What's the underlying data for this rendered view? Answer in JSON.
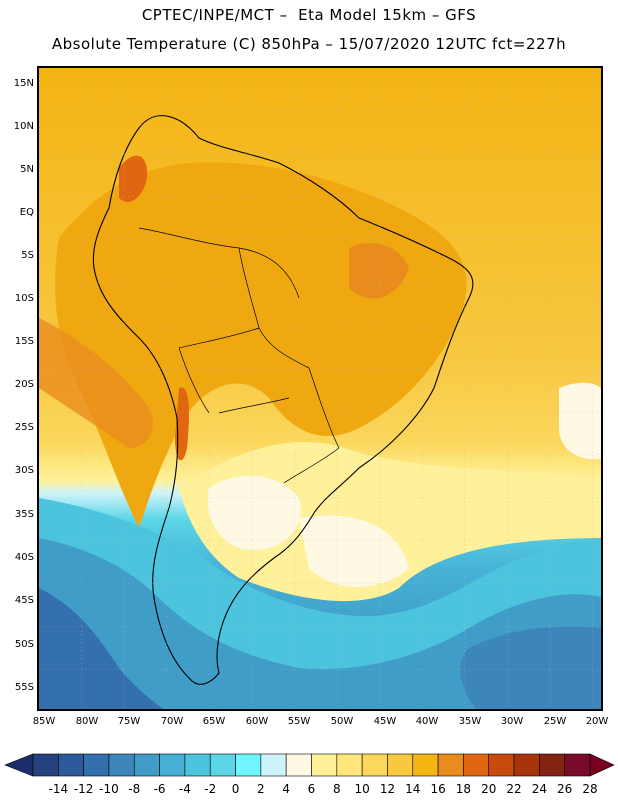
{
  "header": {
    "line1": "CPTEC/INPE/MCT –  Eta Model 15km – GFS",
    "line2": "Absolute Temperature (C) 850hPa – 15/07/2020 12UTC fct=227h"
  },
  "map": {
    "lat_labels": [
      "15N",
      "10N",
      "5N",
      "EQ",
      "5S",
      "10S",
      "15S",
      "20S",
      "25S",
      "30S",
      "35S",
      "40S",
      "45S",
      "50S",
      "55S"
    ],
    "lon_labels": [
      "85W",
      "80W",
      "75W",
      "70W",
      "65W",
      "60W",
      "55W",
      "50W",
      "45W",
      "40W",
      "35W",
      "30W",
      "25W",
      "20W"
    ],
    "grid": "dotted"
  },
  "colorbar": {
    "labels": [
      "-14",
      "-12",
      "-10",
      "-8",
      "-6",
      "-4",
      "-2",
      "0",
      "2",
      "4",
      "6",
      "8",
      "10",
      "12",
      "14",
      "16",
      "18",
      "20",
      "22",
      "24",
      "26",
      "28"
    ],
    "colors": [
      "#25427e",
      "#2e5a9b",
      "#3470ad",
      "#3c86bb",
      "#3f9dc8",
      "#46b1d6",
      "#4dc4de",
      "#5ad6e6",
      "#6ef5ff",
      "#cdf3fb",
      "#fff9e3",
      "#fff19a",
      "#ffe57a",
      "#fbd75c",
      "#f7c840",
      "#f4b414",
      "#ea8c1d",
      "#e06612",
      "#c84a0e",
      "#a8340b",
      "#842213",
      "#7a0b2a"
    ],
    "left_arrow_color": "#1c2f6a",
    "right_arrow_color": "#7a0020"
  }
}
